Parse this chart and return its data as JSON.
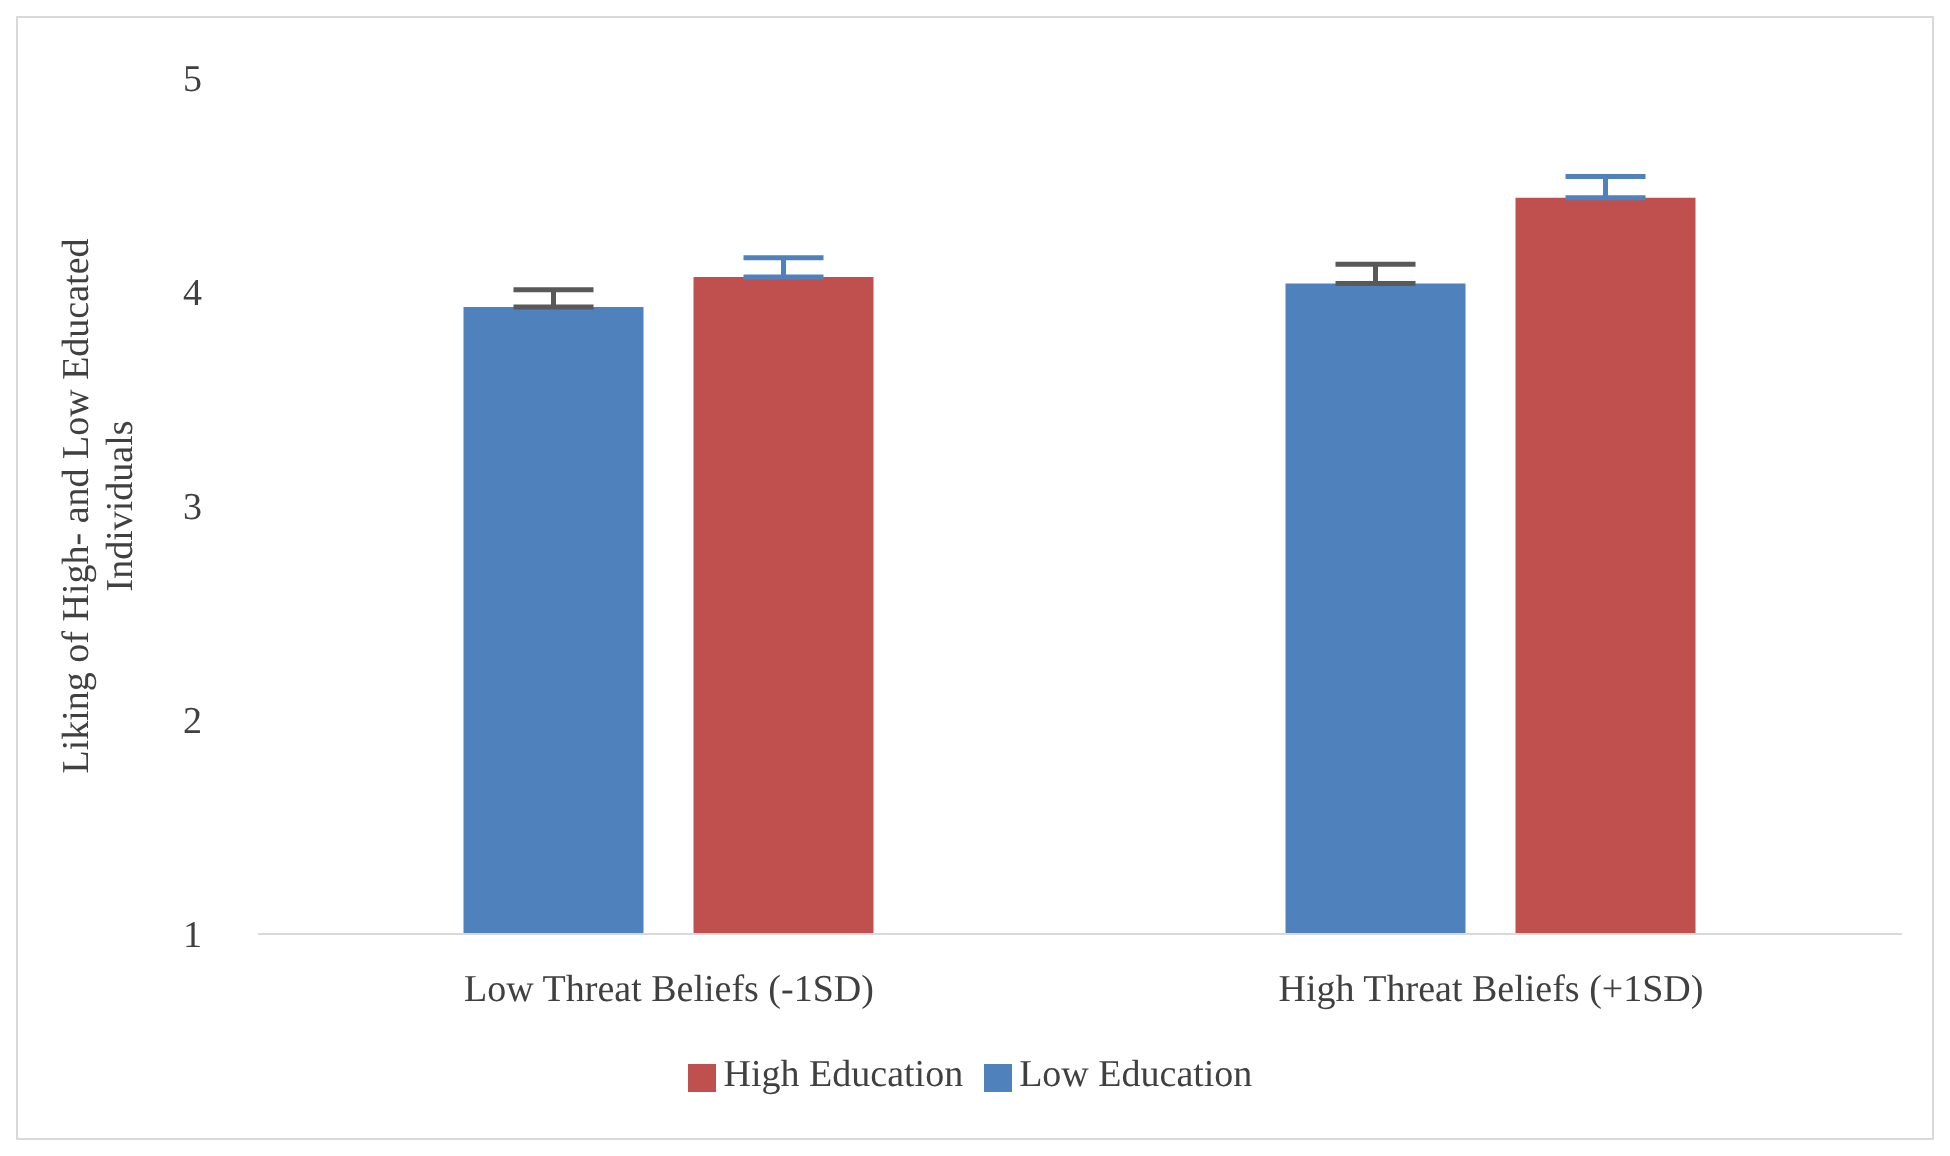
{
  "chart_data": {
    "type": "bar",
    "ylabel": "Liking of High- and Low Educated Individuals",
    "categories": [
      "Low Threat Beliefs (-1SD)",
      "High Threat Beliefs (+1SD)"
    ],
    "series": [
      {
        "name": "Low Education",
        "color": "#4f81bd",
        "values": [
          3.93,
          4.04
        ],
        "errors": [
          [
            3.93,
            4.01
          ],
          [
            4.04,
            4.13
          ]
        ]
      },
      {
        "name": "High Education",
        "color": "#c0504d",
        "values": [
          4.07,
          4.44
        ],
        "errors": [
          [
            4.07,
            4.16
          ],
          [
            4.44,
            4.54
          ]
        ]
      }
    ],
    "ylim": [
      1,
      5
    ],
    "yticks": [
      1,
      2,
      3,
      4,
      5
    ],
    "grid": false,
    "legend": "bottom"
  }
}
